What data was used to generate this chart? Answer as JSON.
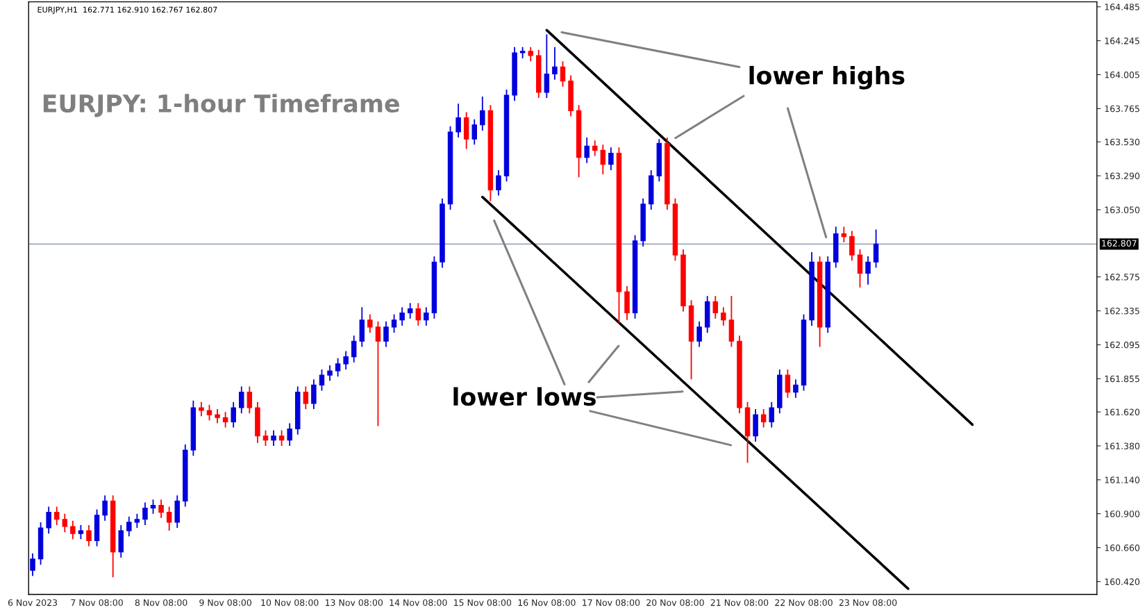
{
  "chart_data": {
    "type": "candlestick",
    "title": "EURJPY: 1-hour Timeframe",
    "subtitle": "EURJPY,H1  162.771 162.910 162.767 162.807",
    "annotations": [
      "lower highs",
      "lower lows"
    ],
    "categories": [
      "6 Nov 2023",
      null,
      null,
      null,
      null,
      null,
      null,
      null,
      "7 Nov 08:00",
      null,
      null,
      null,
      null,
      null,
      null,
      null,
      "8 Nov 08:00",
      null,
      null,
      null,
      null,
      null,
      null,
      null,
      "9 Nov 08:00",
      null,
      null,
      null,
      null,
      null,
      null,
      null,
      "10 Nov 08:00",
      null,
      null,
      null,
      null,
      null,
      null,
      null,
      "13 Nov 08:00",
      null,
      null,
      null,
      null,
      null,
      null,
      null,
      "14 Nov 08:00",
      null,
      null,
      null,
      null,
      null,
      null,
      null,
      "15 Nov 08:00",
      null,
      null,
      null,
      null,
      null,
      null,
      null,
      "16 Nov 08:00",
      null,
      null,
      null,
      null,
      null,
      null,
      null,
      "17 Nov 08:00",
      null,
      null,
      null,
      null,
      null,
      null,
      null,
      "20 Nov 08:00",
      null,
      null,
      null,
      null,
      null,
      null,
      null,
      "21 Nov 08:00",
      null,
      null,
      null,
      null,
      null,
      null,
      null,
      "22 Nov 08:00",
      null,
      null,
      null,
      null,
      null,
      null,
      null,
      "23 Nov 08:00",
      null,
      null,
      null,
      null,
      null,
      null,
      null,
      null,
      null,
      null,
      null,
      null,
      null,
      null,
      null,
      null,
      null,
      null,
      null,
      null,
      null,
      null,
      null,
      null,
      null,
      null,
      null,
      null
    ],
    "ohlc": [
      [
        160.5,
        160.62,
        160.46,
        160.58
      ],
      [
        160.58,
        160.84,
        160.54,
        160.8
      ],
      [
        160.8,
        160.95,
        160.76,
        160.91
      ],
      [
        160.91,
        160.95,
        160.82,
        160.86
      ],
      [
        160.86,
        160.9,
        160.77,
        160.81
      ],
      [
        160.81,
        160.85,
        160.72,
        160.76
      ],
      [
        160.76,
        160.82,
        160.72,
        160.78
      ],
      [
        160.78,
        160.82,
        160.67,
        160.71
      ],
      [
        160.71,
        160.93,
        160.67,
        160.89
      ],
      [
        160.89,
        161.03,
        160.85,
        160.99
      ],
      [
        160.99,
        161.03,
        160.45,
        160.63
      ],
      [
        160.63,
        160.82,
        160.59,
        160.78
      ],
      [
        160.78,
        160.88,
        160.74,
        160.84
      ],
      [
        160.84,
        160.9,
        160.8,
        160.86
      ],
      [
        160.86,
        160.98,
        160.82,
        160.94
      ],
      [
        160.94,
        161.0,
        160.9,
        160.96
      ],
      [
        160.96,
        161.0,
        160.87,
        160.91
      ],
      [
        160.91,
        160.95,
        160.78,
        160.84
      ],
      [
        160.84,
        161.03,
        160.8,
        160.99
      ],
      [
        160.99,
        161.39,
        160.95,
        161.35
      ],
      [
        161.35,
        161.7,
        161.31,
        161.65
      ],
      [
        161.65,
        161.69,
        161.59,
        161.63
      ],
      [
        161.63,
        161.67,
        161.56,
        161.6
      ],
      [
        161.6,
        161.64,
        161.54,
        161.58
      ],
      [
        161.58,
        161.62,
        161.51,
        161.55
      ],
      [
        161.55,
        161.69,
        161.51,
        161.65
      ],
      [
        161.65,
        161.8,
        161.61,
        161.76
      ],
      [
        161.76,
        161.8,
        161.61,
        161.65
      ],
      [
        161.65,
        161.69,
        161.4,
        161.45
      ],
      [
        161.45,
        161.49,
        161.38,
        161.42
      ],
      [
        161.42,
        161.49,
        161.38,
        161.45
      ],
      [
        161.45,
        161.49,
        161.38,
        161.42
      ],
      [
        161.42,
        161.54,
        161.38,
        161.5
      ],
      [
        161.5,
        161.8,
        161.46,
        161.76
      ],
      [
        161.76,
        161.8,
        161.64,
        161.68
      ],
      [
        161.68,
        161.85,
        161.64,
        161.81
      ],
      [
        161.81,
        161.92,
        161.77,
        161.88
      ],
      [
        161.88,
        161.95,
        161.84,
        161.91
      ],
      [
        161.91,
        162.0,
        161.87,
        161.96
      ],
      [
        161.96,
        162.05,
        161.92,
        162.01
      ],
      [
        162.01,
        162.16,
        161.97,
        162.12
      ],
      [
        162.12,
        162.36,
        162.08,
        162.27
      ],
      [
        162.27,
        162.31,
        162.18,
        162.22
      ],
      [
        162.22,
        162.26,
        161.52,
        162.12
      ],
      [
        162.12,
        162.26,
        162.08,
        162.22
      ],
      [
        162.22,
        162.31,
        162.18,
        162.27
      ],
      [
        162.27,
        162.36,
        162.23,
        162.32
      ],
      [
        162.32,
        162.39,
        162.28,
        162.35
      ],
      [
        162.35,
        162.39,
        162.23,
        162.27
      ],
      [
        162.27,
        162.36,
        162.23,
        162.32
      ],
      [
        162.32,
        162.72,
        162.28,
        162.68
      ],
      [
        162.68,
        163.13,
        162.64,
        163.09
      ],
      [
        163.09,
        163.64,
        163.05,
        163.6
      ],
      [
        163.6,
        163.8,
        163.56,
        163.7
      ],
      [
        163.7,
        163.74,
        163.48,
        163.55
      ],
      [
        163.55,
        163.69,
        163.51,
        163.65
      ],
      [
        163.65,
        163.85,
        163.61,
        163.75
      ],
      [
        163.75,
        163.79,
        163.11,
        163.19
      ],
      [
        163.19,
        163.33,
        163.15,
        163.29
      ],
      [
        163.29,
        163.9,
        163.25,
        163.86
      ],
      [
        163.86,
        164.2,
        163.82,
        164.16
      ],
      [
        164.16,
        164.2,
        164.12,
        164.17
      ],
      [
        164.17,
        164.2,
        164.1,
        164.14
      ],
      [
        164.14,
        164.18,
        163.84,
        163.88
      ],
      [
        163.88,
        164.29,
        163.84,
        164.01
      ],
      [
        164.01,
        164.2,
        163.97,
        164.06
      ],
      [
        164.06,
        164.1,
        163.92,
        163.96
      ],
      [
        163.96,
        164.0,
        163.71,
        163.75
      ],
      [
        163.75,
        163.79,
        163.28,
        163.42
      ],
      [
        163.42,
        163.56,
        163.38,
        163.5
      ],
      [
        163.5,
        163.54,
        163.43,
        163.47
      ],
      [
        163.47,
        163.51,
        163.3,
        163.37
      ],
      [
        163.37,
        163.49,
        163.33,
        163.45
      ],
      [
        163.45,
        163.49,
        162.25,
        162.47
      ],
      [
        162.47,
        162.51,
        162.27,
        162.32
      ],
      [
        162.32,
        162.87,
        162.28,
        162.83
      ],
      [
        162.83,
        163.13,
        162.79,
        163.09
      ],
      [
        163.09,
        163.33,
        163.05,
        163.29
      ],
      [
        163.29,
        163.55,
        163.25,
        163.52
      ],
      [
        163.52,
        163.56,
        163.05,
        163.09
      ],
      [
        163.09,
        163.13,
        162.69,
        162.73
      ],
      [
        162.73,
        162.77,
        162.33,
        162.37
      ],
      [
        162.37,
        162.41,
        161.85,
        162.12
      ],
      [
        162.12,
        162.26,
        162.08,
        162.22
      ],
      [
        162.22,
        162.44,
        162.18,
        162.4
      ],
      [
        162.4,
        162.44,
        162.28,
        162.32
      ],
      [
        162.32,
        162.36,
        162.23,
        162.27
      ],
      [
        162.27,
        162.44,
        162.08,
        162.12
      ],
      [
        162.12,
        162.16,
        161.61,
        161.65
      ],
      [
        161.65,
        161.69,
        161.26,
        161.45
      ],
      [
        161.45,
        161.64,
        161.41,
        161.6
      ],
      [
        161.6,
        161.64,
        161.51,
        161.55
      ],
      [
        161.55,
        161.69,
        161.51,
        161.65
      ],
      [
        161.65,
        161.92,
        161.61,
        161.88
      ],
      [
        161.88,
        161.92,
        161.72,
        161.76
      ],
      [
        161.76,
        161.85,
        161.72,
        161.81
      ],
      [
        161.81,
        162.31,
        161.77,
        162.27
      ],
      [
        162.27,
        162.75,
        162.23,
        162.68
      ],
      [
        162.68,
        162.72,
        162.08,
        162.22
      ],
      [
        162.22,
        162.72,
        162.18,
        162.68
      ],
      [
        162.68,
        162.93,
        162.64,
        162.88
      ],
      [
        162.88,
        162.93,
        162.82,
        162.86
      ],
      [
        162.86,
        162.9,
        162.69,
        162.73
      ],
      [
        162.73,
        162.77,
        162.5,
        162.6
      ],
      [
        162.6,
        162.72,
        162.52,
        162.68
      ],
      [
        162.68,
        162.91,
        162.64,
        162.807
      ],
      null,
      null,
      null,
      null,
      null,
      null,
      null,
      null,
      null,
      null,
      null,
      null,
      null,
      null,
      null,
      null,
      null,
      null,
      null,
      null,
      null,
      null,
      null,
      null,
      null,
      null,
      null
    ],
    "colors": [
      "#0000dd",
      "#0000dd",
      "#0000dd",
      "#ff0000",
      "#ff0000",
      "#ff0000",
      "#0000dd",
      "#ff0000",
      "#0000dd",
      "#0000dd",
      "#ff0000",
      "#0000dd",
      "#0000dd",
      "#0000dd",
      "#0000dd",
      "#0000dd",
      "#ff0000",
      "#ff0000",
      "#0000dd",
      "#0000dd",
      "#0000dd",
      "#ff0000",
      "#ff0000",
      "#ff0000",
      "#ff0000",
      "#0000dd",
      "#0000dd",
      "#ff0000",
      "#ff0000",
      "#ff0000",
      "#0000dd",
      "#ff0000",
      "#0000dd",
      "#0000dd",
      "#ff0000",
      "#0000dd",
      "#0000dd",
      "#0000dd",
      "#0000dd",
      "#0000dd",
      "#0000dd",
      "#0000dd",
      "#ff0000",
      "#ff0000",
      "#0000dd",
      "#0000dd",
      "#0000dd",
      "#0000dd",
      "#ff0000",
      "#0000dd",
      "#0000dd",
      "#0000dd",
      "#0000dd",
      "#0000dd",
      "#ff0000",
      "#0000dd",
      "#0000dd",
      "#ff0000",
      "#0000dd",
      "#0000dd",
      "#0000dd",
      "#0000dd",
      "#ff0000",
      "#ff0000",
      "#0000dd",
      "#0000dd",
      "#ff0000",
      "#ff0000",
      "#ff0000",
      "#0000dd",
      "#ff0000",
      "#ff0000",
      "#0000dd",
      "#ff0000",
      "#ff0000",
      "#0000dd",
      "#0000dd",
      "#0000dd",
      "#0000dd",
      "#ff0000",
      "#ff0000",
      "#ff0000",
      "#ff0000",
      "#0000dd",
      "#0000dd",
      "#ff0000",
      "#ff0000",
      "#ff0000",
      "#ff0000",
      "#ff0000",
      "#0000dd",
      "#ff0000",
      "#0000dd",
      "#0000dd",
      "#ff0000",
      "#0000dd",
      "#0000dd",
      "#0000dd",
      "#ff0000",
      "#0000dd",
      "#0000dd",
      "#ff0000",
      "#ff0000",
      "#ff0000",
      "#0000dd",
      "#0000dd",
      null,
      null,
      null,
      null,
      null,
      null,
      null,
      null,
      null,
      null,
      null,
      null,
      null,
      null,
      null,
      null,
      null,
      null,
      null,
      null,
      null,
      null,
      null,
      null,
      null,
      null,
      null
    ],
    "series": [
      {
        "type": "line",
        "color": "#000000",
        "values": [
          null,
          null,
          null,
          null,
          null,
          null,
          null,
          null,
          null,
          null,
          null,
          null,
          null,
          null,
          null,
          null,
          null,
          null,
          null,
          null,
          null,
          null,
          null,
          null,
          null,
          null,
          null,
          null,
          null,
          null,
          null,
          null,
          null,
          null,
          null,
          null,
          null,
          null,
          null,
          null,
          null,
          null,
          null,
          null,
          null,
          null,
          null,
          null,
          null,
          null,
          null,
          null,
          null,
          null,
          null,
          null,
          null,
          null,
          null,
          null,
          null,
          null,
          null,
          null,
          164.32,
          null,
          null,
          null,
          null,
          null,
          null,
          null,
          null,
          null,
          null,
          null,
          null,
          null,
          null,
          null,
          null,
          null,
          null,
          null,
          null,
          null,
          null,
          null,
          null,
          null,
          null,
          null,
          null,
          null,
          null,
          null,
          null,
          null,
          null,
          null,
          null,
          null,
          null,
          null,
          null,
          null,
          null,
          null,
          null,
          null,
          null,
          null,
          null,
          null,
          null,
          null,
          null,
          161.53,
          null,
          null,
          null,
          null,
          null,
          null,
          null,
          null,
          null,
          null,
          null,
          null,
          null,
          null,
          null
        ]
      },
      {
        "type": "line",
        "color": "#000000",
        "values": [
          null,
          null,
          null,
          null,
          null,
          null,
          null,
          null,
          null,
          null,
          null,
          null,
          null,
          null,
          null,
          null,
          null,
          null,
          null,
          null,
          null,
          null,
          null,
          null,
          null,
          null,
          null,
          null,
          null,
          null,
          null,
          null,
          null,
          null,
          null,
          null,
          null,
          null,
          null,
          null,
          null,
          null,
          null,
          null,
          null,
          null,
          null,
          null,
          null,
          null,
          null,
          null,
          null,
          null,
          null,
          null,
          163.14,
          null,
          null,
          null,
          null,
          null,
          null,
          null,
          null,
          null,
          null,
          null,
          null,
          null,
          null,
          null,
          null,
          null,
          null,
          null,
          null,
          null,
          null,
          null,
          null,
          null,
          null,
          null,
          null,
          null,
          null,
          null,
          null,
          null,
          null,
          null,
          null,
          null,
          null,
          null,
          null,
          null,
          null,
          null,
          null,
          null,
          null,
          null,
          null,
          null,
          null,
          null,
          null,
          160.37,
          null,
          null,
          null,
          null,
          null,
          null,
          null,
          null,
          null,
          null,
          null,
          null,
          null,
          null,
          null,
          null,
          null,
          null,
          null,
          null,
          null,
          null,
          null
        ]
      }
    ],
    "ylim": [
      160.33,
      164.52
    ],
    "yticks": [
      {
        "value": 160.42,
        "label": "160.420"
      },
      {
        "value": 160.66,
        "label": "160.660"
      },
      {
        "value": 160.9,
        "label": "160.900"
      },
      {
        "value": 161.14,
        "label": "161.140"
      },
      {
        "value": 161.38,
        "label": "161.380"
      },
      {
        "value": 161.62,
        "label": "161.620"
      },
      {
        "value": 161.855,
        "label": "161.855"
      },
      {
        "value": 162.095,
        "label": "162.095"
      },
      {
        "value": 162.335,
        "label": "162.335"
      },
      {
        "value": 162.575,
        "label": "162.575"
      },
      {
        "value": 163.05,
        "label": "163.050"
      },
      {
        "value": 163.29,
        "label": "163.290"
      },
      {
        "value": 163.53,
        "label": "163.530"
      },
      {
        "value": 163.765,
        "label": "163.765"
      },
      {
        "value": 164.005,
        "label": "164.005"
      },
      {
        "value": 164.245,
        "label": "164.245"
      },
      {
        "value": 164.485,
        "label": "164.485"
      }
    ],
    "ref_lines": [
      {
        "axis": "y",
        "value": 162.807,
        "label": "162.807",
        "color": "#7b8fa8"
      }
    ],
    "grid": false,
    "legend": false
  }
}
